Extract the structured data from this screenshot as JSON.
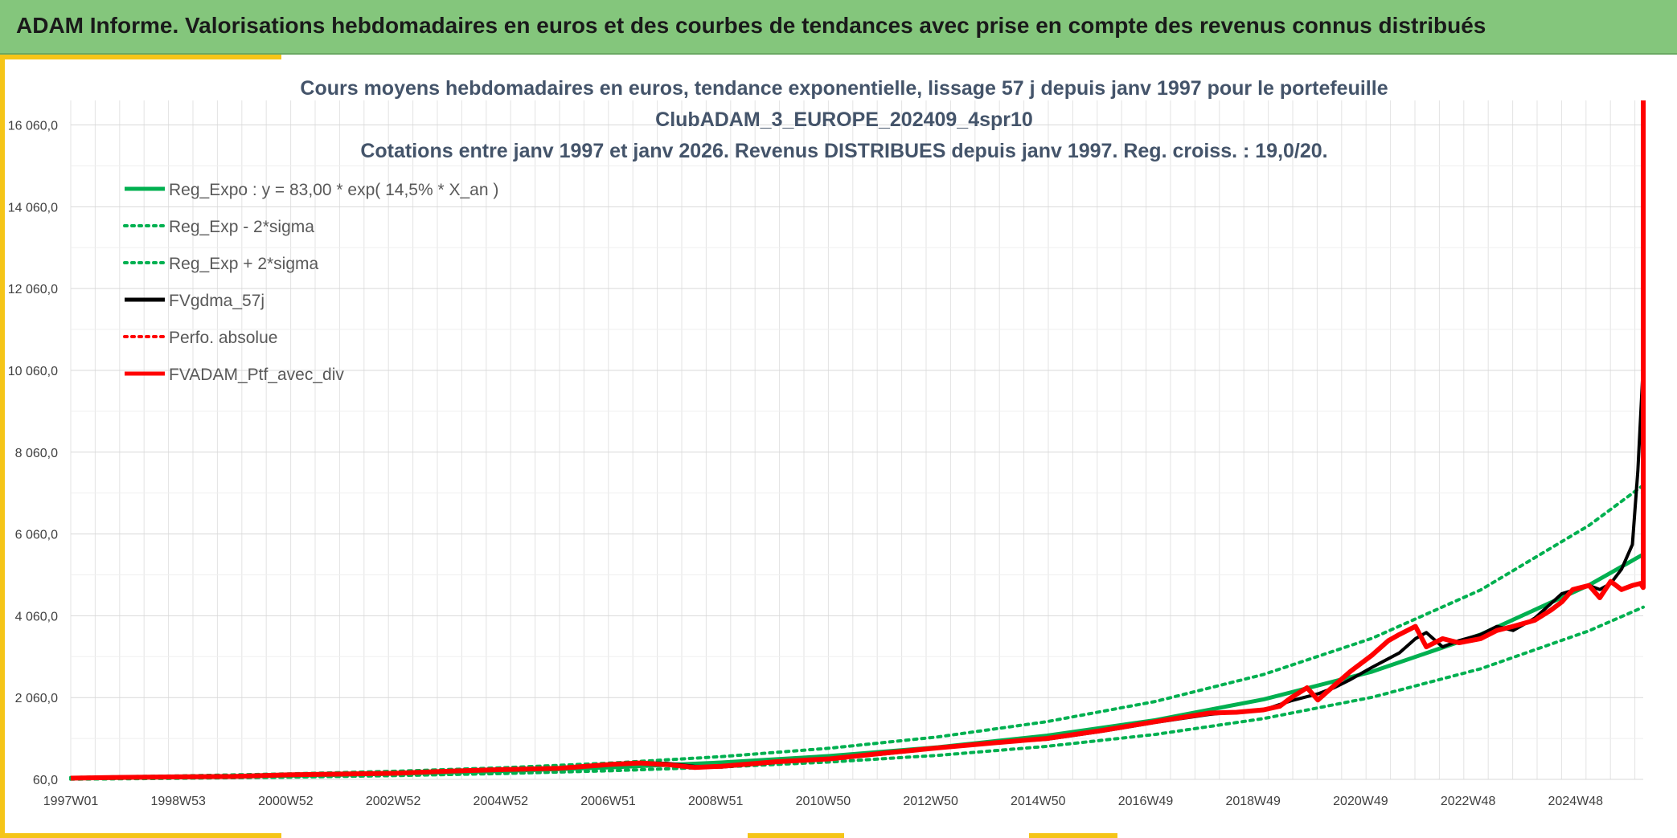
{
  "header": {
    "title": "ADAM Informe. Valorisations hebdomadaires en euros et des courbes de tendances avec prise en compte des revenus connus distribués"
  },
  "colors": {
    "banner": "#84c67c",
    "accent": "#f5c518",
    "trend": "#00b050",
    "mma": "#000000",
    "portfolio": "#ff0000",
    "title_text": "#44546a"
  },
  "chart_data": {
    "type": "line",
    "title_lines": [
      "Cours moyens hebdomadaires en euros, tendance exponentielle, lissage 57 j depuis janv 1997 pour le portefeuille",
      "ClubADAM_3_EUROPE_202409_4spr10",
      "Cotations entre janv 1997 et janv 2026. Revenus DISTRIBUES depuis janv 1997. Reg. croiss. : 19,0/20."
    ],
    "xlabel": "",
    "ylabel": "",
    "x_ticks": [
      "1997W01",
      "1998W53",
      "2000W52",
      "2002W52",
      "2004W52",
      "2006W51",
      "2008W51",
      "2010W50",
      "2012W50",
      "2014W50",
      "2016W49",
      "2018W49",
      "2020W49",
      "2022W48",
      "2024W48"
    ],
    "xlim": [
      1997.0,
      2026.0
    ],
    "ylim": [
      60,
      16660
    ],
    "y_ticks": [
      "60,0",
      "2 060,0",
      "4 060,0",
      "6 060,0",
      "8 060,0",
      "10 060,0",
      "12 060,0",
      "14 060,0",
      "16 060,0"
    ],
    "grid": true,
    "legend_position": "top-left",
    "legend": [
      {
        "label": "Reg_Expo : y = 83,00 * exp( 14,5% *  X_an )",
        "color": "#00b050",
        "style": "solid"
      },
      {
        "label": "Reg_Exp - 2*sigma",
        "color": "#00b050",
        "style": "dotted"
      },
      {
        "label": "Reg_Exp + 2*sigma",
        "color": "#00b050",
        "style": "dotted"
      },
      {
        "label": "FVgdma_57j",
        "color": "#000000",
        "style": "solid"
      },
      {
        "label": "Perfo. absolue",
        "color": "#ff0000",
        "style": "dotted"
      },
      {
        "label": "FVADAM_Ptf_avec_div",
        "color": "#ff0000",
        "style": "solid"
      }
    ],
    "series": [
      {
        "name": "Reg_Expo : y = 83,00 * exp( 14,5% *  X_an )",
        "color": "#00b050",
        "style": "solid",
        "x": [
          1997,
          1999,
          2001,
          2003,
          2005,
          2007,
          2009,
          2011,
          2013,
          2015,
          2017,
          2019,
          2021,
          2023,
          2025,
          2026
        ],
        "y": [
          83,
          111,
          148,
          198,
          265,
          354,
          473,
          632,
          845,
          1129,
          1508,
          2016,
          2694,
          3600,
          4810,
          5560
        ]
      },
      {
        "name": "Reg_Exp - 2*sigma",
        "color": "#00b050",
        "style": "dotted",
        "x": [
          1997,
          1999,
          2001,
          2003,
          2005,
          2007,
          2009,
          2011,
          2013,
          2015,
          2017,
          2019,
          2021,
          2023,
          2025,
          2026
        ],
        "y": [
          64,
          85,
          114,
          152,
          203,
          272,
          363,
          485,
          648,
          867,
          1158,
          1548,
          2068,
          2763,
          3692,
          4270
        ]
      },
      {
        "name": "Reg_Exp + 2*sigma",
        "color": "#00b050",
        "style": "dotted",
        "x": [
          1997,
          1999,
          2001,
          2003,
          2005,
          2007,
          2009,
          2011,
          2013,
          2015,
          2017,
          2019,
          2021,
          2023,
          2025,
          2026
        ],
        "y": [
          108,
          144,
          193,
          258,
          345,
          461,
          616,
          823,
          1100,
          1470,
          1964,
          2626,
          3510,
          4690,
          6270,
          7250
        ]
      },
      {
        "name": "FVgdma_57j",
        "color": "#000000",
        "style": "solid",
        "x": [
          1997,
          1998,
          1999,
          2000,
          2001,
          2002,
          2003,
          2004,
          2005,
          2006,
          2007,
          2007.5,
          2008,
          2008.5,
          2009,
          2010,
          2011,
          2012,
          2013,
          2014,
          2015,
          2016,
          2017,
          2018,
          2018.5,
          2019,
          2019.5,
          2020,
          2020.3,
          2020.6,
          2021,
          2021.5,
          2021.8,
          2022,
          2022.3,
          2022.6,
          2023,
          2023.3,
          2023.6,
          2024,
          2024.5,
          2025,
          2025.2,
          2025.4,
          2025.6,
          2025.8,
          2025.9,
          2026
        ],
        "y": [
          90,
          110,
          115,
          135,
          160,
          195,
          215,
          250,
          290,
          340,
          420,
          470,
          450,
          380,
          360,
          470,
          570,
          680,
          820,
          950,
          1040,
          1230,
          1450,
          1650,
          1710,
          1760,
          1980,
          2150,
          2300,
          2500,
          2800,
          3150,
          3500,
          3650,
          3300,
          3450,
          3600,
          3800,
          3700,
          4000,
          4600,
          4800,
          4700,
          4850,
          5200,
          5800,
          7600,
          10200
        ]
      },
      {
        "name": "FVADAM_Ptf_avec_div",
        "color": "#ff0000",
        "style": "solid",
        "x": [
          1997,
          1998,
          1999,
          2000,
          2001,
          2002,
          2003,
          2004,
          2005,
          2006,
          2007,
          2007.5,
          2008,
          2008.5,
          2009,
          2010,
          2011,
          2012,
          2013,
          2014,
          2015,
          2016,
          2017,
          2018,
          2018.5,
          2019,
          2019.3,
          2019.5,
          2019.8,
          2020,
          2020.3,
          2020.6,
          2021,
          2021.3,
          2021.5,
          2021.8,
          2022,
          2022.3,
          2022.6,
          2023,
          2023.3,
          2023.6,
          2024,
          2024.3,
          2024.5,
          2024.7,
          2025,
          2025.2,
          2025.4,
          2025.6,
          2025.8,
          2025.95,
          2026,
          2026
        ],
        "y": [
          90,
          110,
          120,
          130,
          170,
          190,
          210,
          260,
          300,
          330,
          430,
          460,
          420,
          350,
          380,
          490,
          560,
          700,
          830,
          950,
          1060,
          1250,
          1470,
          1680,
          1700,
          1760,
          1850,
          2050,
          2300,
          2000,
          2350,
          2700,
          3100,
          3450,
          3600,
          3800,
          3300,
          3500,
          3400,
          3500,
          3700,
          3800,
          3950,
          4200,
          4400,
          4700,
          4800,
          4500,
          4900,
          4700,
          4800,
          4850,
          4750,
          16660
        ]
      }
    ]
  }
}
